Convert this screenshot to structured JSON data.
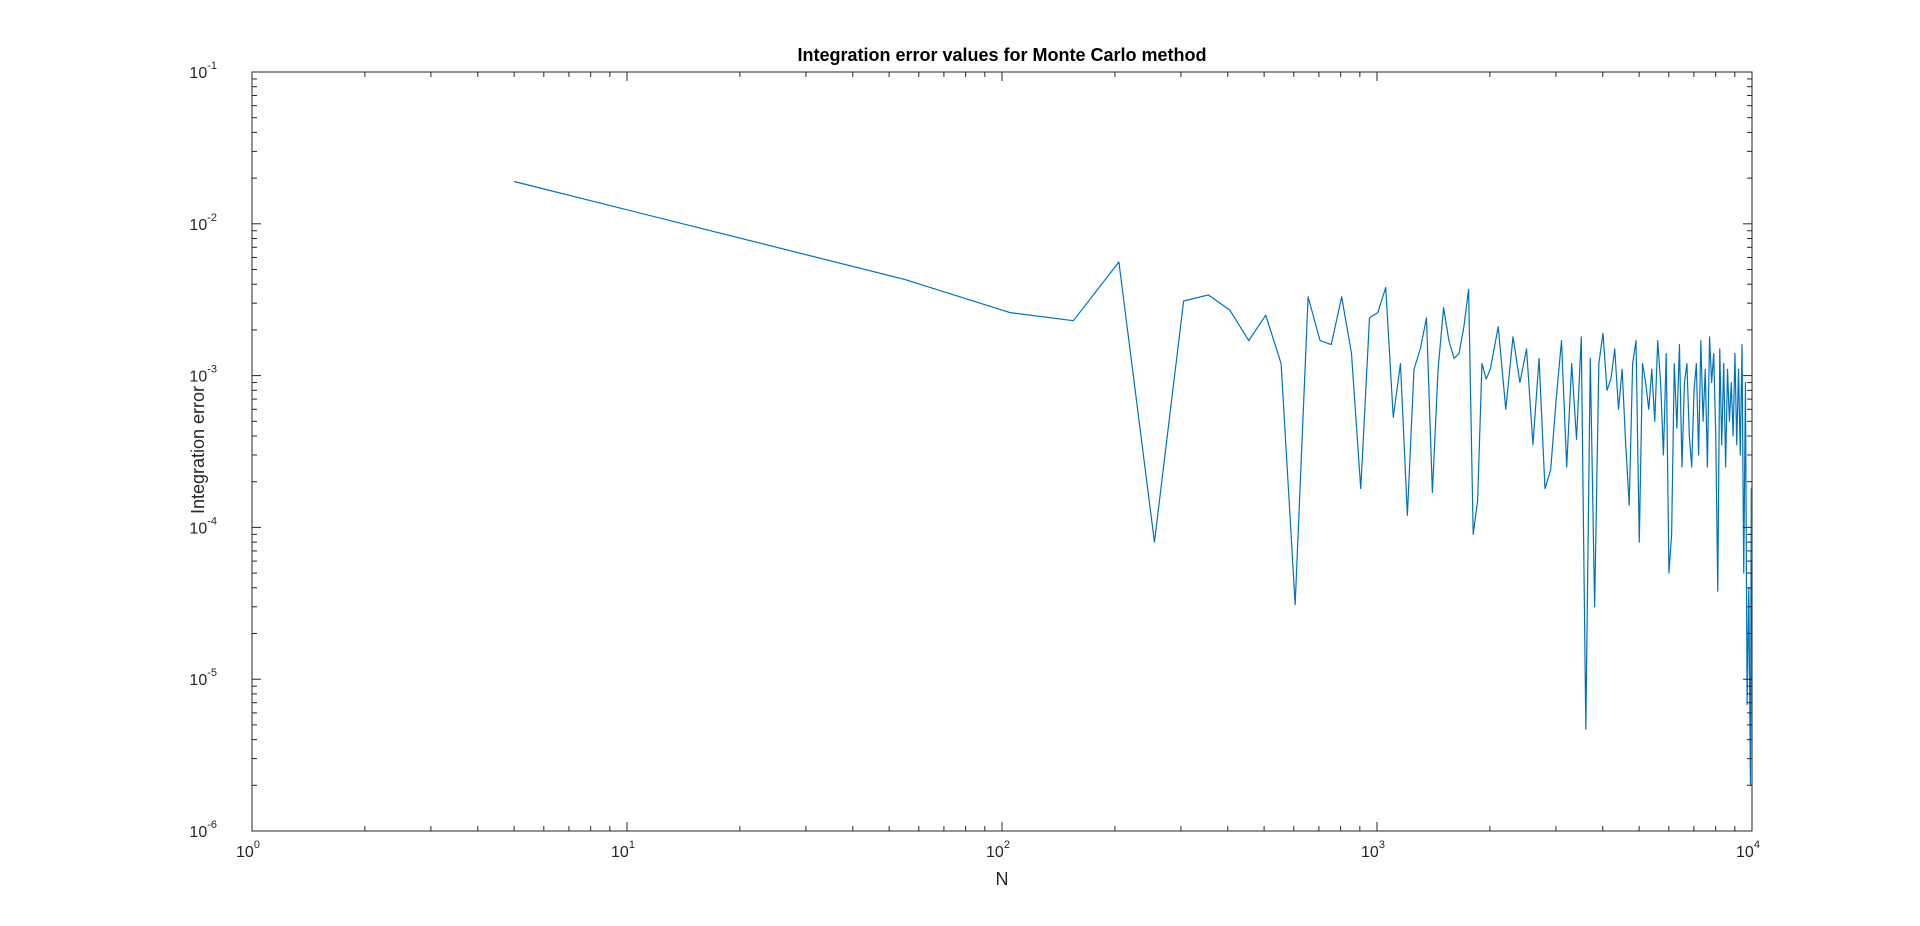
{
  "chart_data": {
    "type": "line",
    "title": "Integration error values for Monte Carlo method",
    "xlabel": "N",
    "ylabel": "Integration error",
    "xscale": "log",
    "yscale": "log",
    "xlim": [
      1,
      10000
    ],
    "ylim": [
      1e-06,
      0.1
    ],
    "grid": false,
    "legend": "none",
    "line_color": "#0072BD",
    "x_ticks": [
      {
        "base": "10",
        "exp": "0",
        "value": 1
      },
      {
        "base": "10",
        "exp": "1",
        "value": 10
      },
      {
        "base": "10",
        "exp": "2",
        "value": 100
      },
      {
        "base": "10",
        "exp": "3",
        "value": 1000
      },
      {
        "base": "10",
        "exp": "4",
        "value": 10000
      }
    ],
    "y_ticks": [
      {
        "base": "10",
        "exp": "-6",
        "value": 1e-06
      },
      {
        "base": "10",
        "exp": "-5",
        "value": 1e-05
      },
      {
        "base": "10",
        "exp": "-4",
        "value": 0.0001
      },
      {
        "base": "10",
        "exp": "-3",
        "value": 0.001
      },
      {
        "base": "10",
        "exp": "-2",
        "value": 0.01
      },
      {
        "base": "10",
        "exp": "-1",
        "value": 0.1
      }
    ],
    "series": [
      {
        "x": [
          5,
          55,
          105,
          155,
          205,
          255,
          305,
          355,
          405,
          455,
          505,
          555,
          605,
          655,
          705,
          755,
          805,
          855,
          905,
          955,
          1005,
          1055,
          1105,
          1155,
          1205,
          1255,
          1305,
          1355,
          1405,
          1455,
          1505,
          1555,
          1605,
          1655,
          1705,
          1755,
          1805,
          1855,
          1905,
          1955,
          2005,
          2105,
          2205,
          2305,
          2405,
          2505,
          2605,
          2705,
          2805,
          2905,
          3005,
          3105,
          3205,
          3305,
          3405,
          3505,
          3605,
          3705,
          3805,
          3905,
          4005,
          4105,
          4205,
          4305,
          4405,
          4505,
          4605,
          4705,
          4805,
          4905,
          5005,
          5105,
          5205,
          5305,
          5405,
          5505,
          5605,
          5705,
          5805,
          5905,
          6005,
          6105,
          6205,
          6305,
          6405,
          6505,
          6605,
          6705,
          6805,
          6905,
          7005,
          7105,
          7205,
          7305,
          7405,
          7505,
          7605,
          7705,
          7805,
          7905,
          8005,
          8105,
          8205,
          8305,
          8405,
          8505,
          8605,
          8705,
          8805,
          8905,
          9005,
          9105,
          9205,
          9305,
          9405,
          9505,
          9605,
          9705,
          9805,
          9905,
          9955,
          10000
        ],
        "y": [
          0.019,
          0.0043,
          0.0026,
          0.0023,
          0.0056,
          8e-05,
          0.0031,
          0.0034,
          0.0027,
          0.0017,
          0.0025,
          0.0012,
          3.1e-05,
          0.0033,
          0.0017,
          0.0016,
          0.0033,
          0.0014,
          0.00018,
          0.0024,
          0.0026,
          0.0038,
          0.00053,
          0.0012,
          0.00012,
          0.0011,
          0.0015,
          0.0024,
          0.00017,
          0.0011,
          0.0028,
          0.0017,
          0.0013,
          0.0014,
          0.0021,
          0.0037,
          9e-05,
          0.00015,
          0.0012,
          0.00095,
          0.0011,
          0.0021,
          0.0006,
          0.0018,
          0.0009,
          0.0015,
          0.00035,
          0.0013,
          0.00018,
          0.00024,
          0.0007,
          0.0017,
          0.00025,
          0.0012,
          0.00038,
          0.0018,
          4.7e-06,
          0.0013,
          3e-05,
          0.0012,
          0.0019,
          0.0008,
          0.00095,
          0.0015,
          0.0006,
          0.0011,
          0.00035,
          0.00014,
          0.0012,
          0.0017,
          8e-05,
          0.0012,
          0.0009,
          0.0006,
          0.0011,
          0.0005,
          0.0017,
          0.0009,
          0.0003,
          0.0014,
          5e-05,
          9e-05,
          0.0012,
          0.00045,
          0.0016,
          0.00025,
          0.0009,
          0.0012,
          0.0004,
          0.00025,
          0.0008,
          0.0012,
          0.0003,
          0.0017,
          0.0005,
          0.0011,
          0.00025,
          0.0018,
          0.0009,
          0.0014,
          0.0004,
          3.8e-05,
          0.0015,
          0.00035,
          0.0012,
          0.00025,
          0.0011,
          0.0005,
          0.0009,
          0.0004,
          0.0014,
          0.00035,
          0.0011,
          0.0003,
          0.0016,
          5e-05,
          0.0009,
          6.8e-06,
          4e-05,
          2e-06,
          0.00018,
          6e-05
        ]
      }
    ]
  }
}
